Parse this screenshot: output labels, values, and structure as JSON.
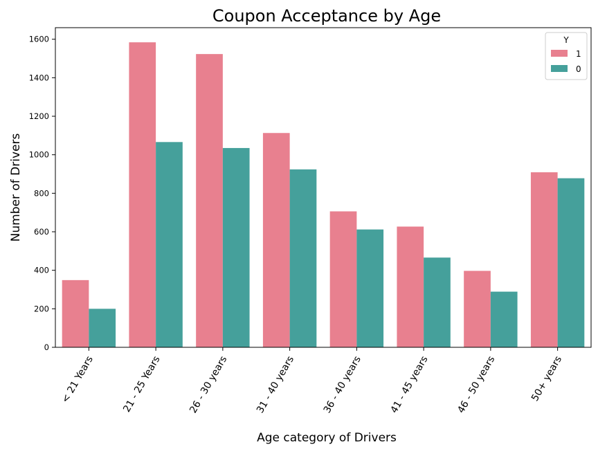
{
  "chart_data": {
    "type": "bar",
    "title": "Coupon Acceptance by Age",
    "xlabel": "Age category of Drivers",
    "ylabel": "Number of Drivers",
    "categories": [
      "< 21 Years",
      "21 - 25 Years",
      "26 - 30 years",
      "31 - 40 years",
      "36 - 40 years",
      "41 - 45 years",
      "46 - 50 years",
      "50+ years"
    ],
    "series": [
      {
        "name": "1",
        "color": "#e8808f",
        "values": [
          349,
          1584,
          1523,
          1113,
          706,
          627,
          397,
          909
        ]
      },
      {
        "name": "0",
        "color": "#45a09b",
        "values": [
          200,
          1066,
          1035,
          924,
          612,
          466,
          289,
          878
        ]
      }
    ],
    "legend_title": "Y",
    "legend_position": "top-right",
    "ylim": [
      0,
      1660
    ],
    "yticks": [
      0,
      200,
      400,
      600,
      800,
      1000,
      1200,
      1400,
      1600
    ],
    "grid": false
  }
}
